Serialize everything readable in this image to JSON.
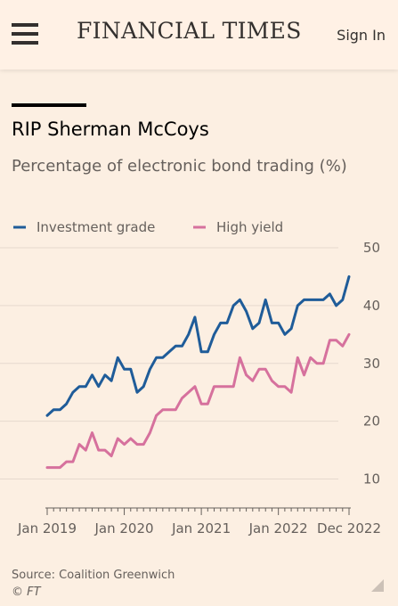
{
  "header": {
    "menu_icon": "hamburger-icon",
    "masthead": "FINANCIAL TIMES",
    "signin": "Sign In"
  },
  "colors": {
    "background": "#fcefe2",
    "grid": "#e6d9ce",
    "investment_grade": "#1f5c99",
    "high_yield": "#d6719d"
  },
  "chart_data": {
    "type": "line",
    "title": "RIP Sherman McCoys",
    "subtitle": "Percentage of electronic bond trading (%)",
    "ylim": [
      5,
      50
    ],
    "yticks": [
      10,
      20,
      30,
      40,
      50
    ],
    "y_axis_position": "right",
    "grid": true,
    "legend_placement": "top-left",
    "xtick_labels": [
      "Jan 2019",
      "Jan 2020",
      "Jan 2021",
      "Jan 2022",
      "Dec 2022"
    ],
    "x": [
      "2019-01",
      "2019-02",
      "2019-03",
      "2019-04",
      "2019-05",
      "2019-06",
      "2019-07",
      "2019-08",
      "2019-09",
      "2019-10",
      "2019-11",
      "2019-12",
      "2020-01",
      "2020-02",
      "2020-03",
      "2020-04",
      "2020-05",
      "2020-06",
      "2020-07",
      "2020-08",
      "2020-09",
      "2020-10",
      "2020-11",
      "2020-12",
      "2021-01",
      "2021-02",
      "2021-03",
      "2021-04",
      "2021-05",
      "2021-06",
      "2021-07",
      "2021-08",
      "2021-09",
      "2021-10",
      "2021-11",
      "2021-12",
      "2022-01",
      "2022-02",
      "2022-03",
      "2022-04",
      "2022-05",
      "2022-06",
      "2022-07",
      "2022-08",
      "2022-09",
      "2022-10",
      "2022-11",
      "2022-12"
    ],
    "series": [
      {
        "name": "Investment grade",
        "color": "#1f5c99",
        "values": [
          21,
          22,
          22,
          23,
          25,
          26,
          26,
          28,
          26,
          28,
          27,
          31,
          29,
          29,
          25,
          26,
          29,
          31,
          31,
          32,
          33,
          33,
          35,
          38,
          32,
          32,
          35,
          37,
          37,
          40,
          41,
          39,
          36,
          37,
          41,
          37,
          37,
          35,
          36,
          40,
          41,
          41,
          41,
          41,
          42,
          40,
          41,
          45
        ]
      },
      {
        "name": "High yield",
        "color": "#d6719d",
        "values": [
          12,
          12,
          12,
          13,
          13,
          16,
          15,
          18,
          15,
          15,
          14,
          17,
          16,
          17,
          16,
          16,
          18,
          21,
          22,
          22,
          22,
          24,
          25,
          26,
          23,
          23,
          26,
          26,
          26,
          26,
          31,
          28,
          27,
          29,
          29,
          27,
          26,
          26,
          25,
          31,
          28,
          31,
          30,
          30,
          34,
          34,
          33,
          35
        ]
      }
    ]
  },
  "footer": {
    "source": "Source: Coalition Greenwich",
    "copyright": "© FT"
  }
}
